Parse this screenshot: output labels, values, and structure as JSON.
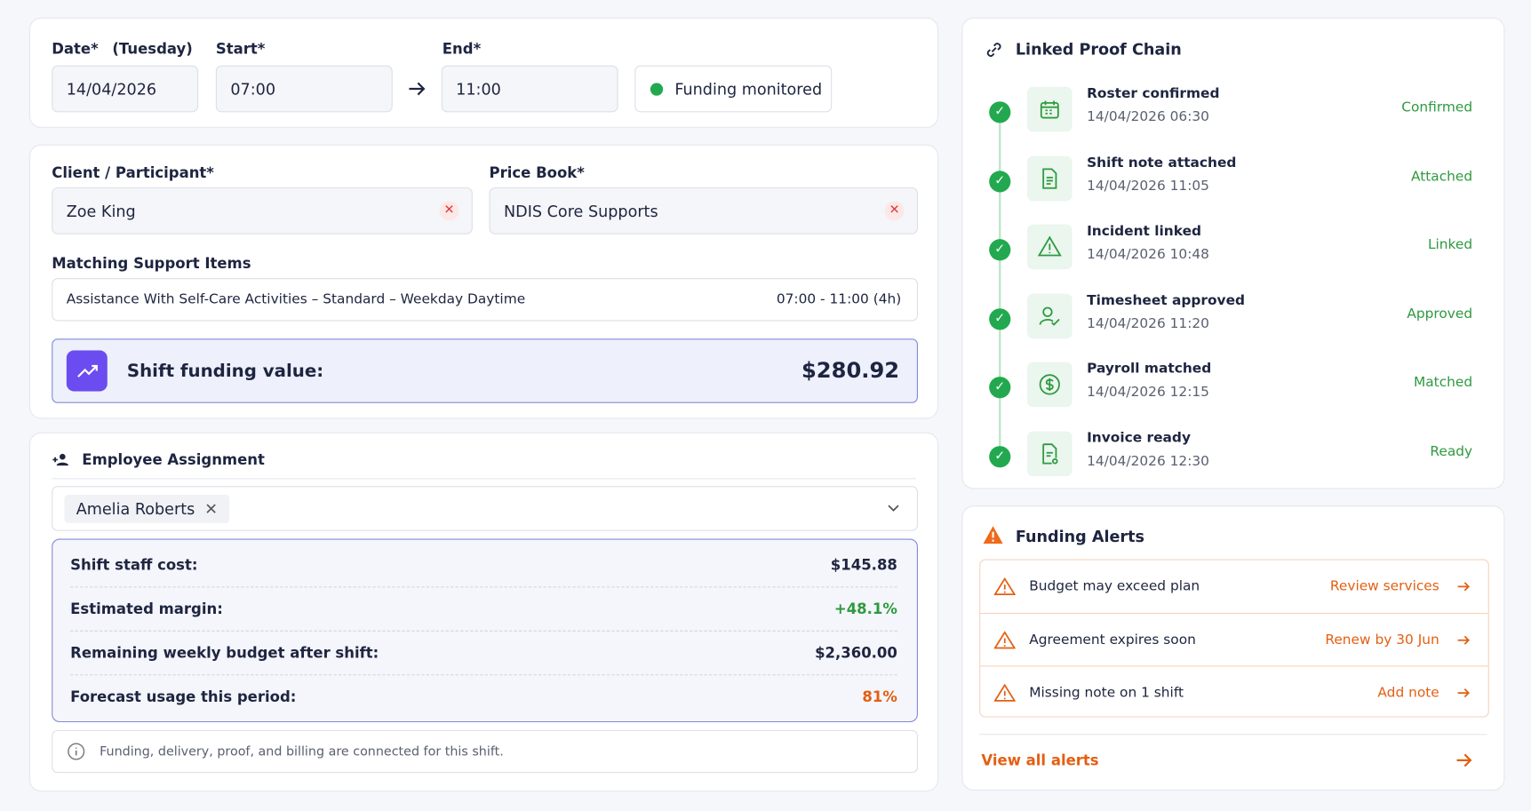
{
  "shift_time": {
    "date_label": "Date*",
    "day": "(Tuesday)",
    "start_label": "Start*",
    "end_label": "End*",
    "date": "14/04/2026",
    "start": "07:00",
    "end": "11:00",
    "status": "Funding monitored"
  },
  "client": {
    "client_label": "Client / Participant*",
    "client": "Zoe King",
    "price_book_label": "Price Book*",
    "price_book": "NDIS Core Supports",
    "items_label": "Matching Support Items",
    "item": "Assistance With Self-Care Activities – Standard – Weekday Daytime",
    "item_time": "07:00 - 11:00 (4h)",
    "funding_label": "Shift funding value:",
    "funding_value": "$280.92"
  },
  "employee": {
    "title": "Employee Assignment",
    "employee": "Amelia Roberts",
    "rows": [
      {
        "label": "Shift staff cost:",
        "value": "$145.88"
      },
      {
        "label": "Estimated margin:",
        "value": "+48.1%"
      },
      {
        "label": "Remaining weekly budget after shift:",
        "value": "$2,360.00"
      },
      {
        "label": "Forecast usage this period:",
        "value": "81%"
      }
    ],
    "note": "Funding, delivery, proof, and billing are connected for this shift."
  },
  "proof_chain": {
    "title": "Linked Proof Chain",
    "steps": [
      {
        "title": "Roster confirmed",
        "time": "14/04/2026 06:30",
        "status": "Confirmed"
      },
      {
        "title": "Shift note attached",
        "time": "14/04/2026 11:05",
        "status": "Attached"
      },
      {
        "title": "Incident linked",
        "time": "14/04/2026 10:48",
        "status": "Linked"
      },
      {
        "title": "Timesheet approved",
        "time": "14/04/2026 11:20",
        "status": "Approved"
      },
      {
        "title": "Payroll matched",
        "time": "14/04/2026 12:15",
        "status": "Matched"
      },
      {
        "title": "Invoice ready",
        "time": "14/04/2026 12:30",
        "status": "Ready"
      }
    ]
  },
  "alerts": {
    "title": "Funding Alerts",
    "items": [
      {
        "text": "Budget may exceed plan",
        "action": "Review services"
      },
      {
        "text": "Agreement expires soon",
        "action": "Renew by 30 Jun"
      },
      {
        "text": "Missing note on 1 shift",
        "action": "Add note"
      }
    ],
    "view_all": "View all alerts"
  }
}
